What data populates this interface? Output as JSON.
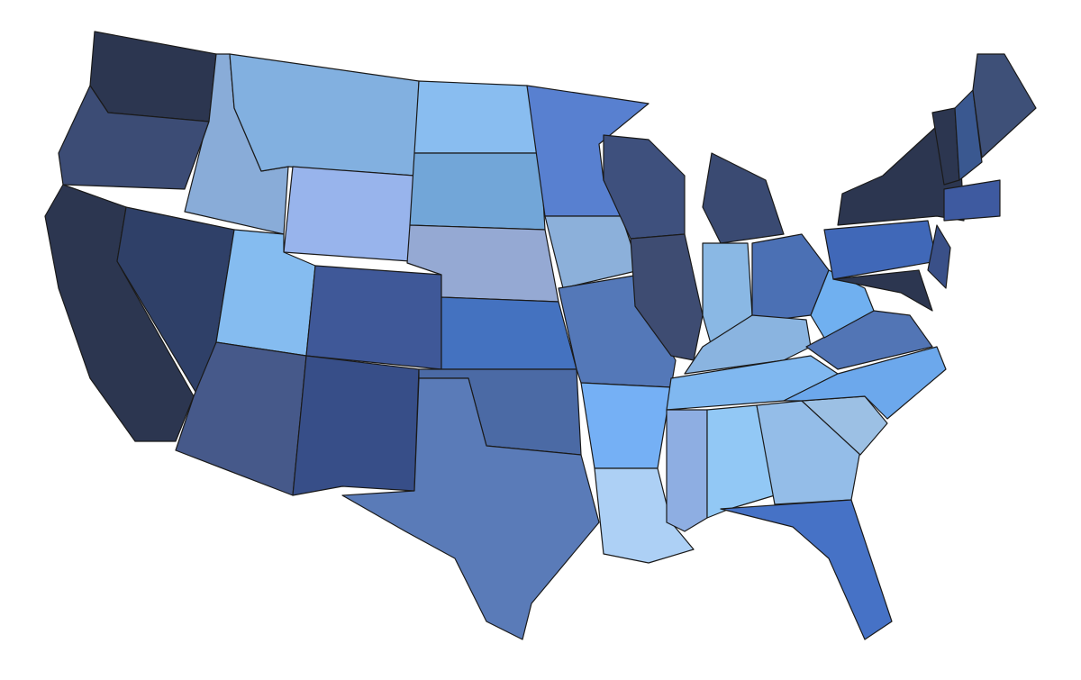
{
  "map": {
    "regions": [
      {
        "color": "#2c3650"
      },
      {
        "color": "#3c4c75"
      },
      {
        "color": "#2c3650"
      },
      {
        "color": "#2f4068"
      },
      {
        "color": "#89acd8"
      },
      {
        "color": "#82b0e0"
      },
      {
        "color": "#98b4ec"
      },
      {
        "color": "#85bcf0"
      },
      {
        "color": "#3f5898"
      },
      {
        "color": "#46598a"
      },
      {
        "color": "#374e88"
      },
      {
        "color": "#89bdf0"
      },
      {
        "color": "#72a6d8"
      },
      {
        "color": "#95a9d3"
      },
      {
        "color": "#4472c0"
      },
      {
        "color": "#4b6aa5"
      },
      {
        "color": "#5a7bb8"
      },
      {
        "color": "#5880d0"
      },
      {
        "color": "#8cb0da"
      },
      {
        "color": "#5478b8"
      },
      {
        "color": "#75b0f5"
      },
      {
        "color": "#add0f5"
      },
      {
        "color": "#3e507d"
      },
      {
        "color": "#3e4c72"
      },
      {
        "color": "#3a4a72"
      },
      {
        "color": "#8ab8e4"
      },
      {
        "color": "#4b70b4"
      },
      {
        "color": "#8ab4e0"
      },
      {
        "color": "#80b8f0"
      },
      {
        "color": "#8eaee2"
      },
      {
        "color": "#92c8f5"
      },
      {
        "color": "#94bde8"
      },
      {
        "color": "#4672c6"
      },
      {
        "color": "#9cc0e4"
      },
      {
        "color": "#6ca8ec"
      },
      {
        "color": "#5275b5"
      },
      {
        "color": "#70b0f0"
      },
      {
        "color": "#4068b8"
      },
      {
        "color": "#2c3650"
      },
      {
        "color": "#3a5088"
      },
      {
        "color": "#2c3650"
      },
      {
        "color": "#3e5aa0"
      },
      {
        "color": "#2c3650"
      },
      {
        "color": "#3a5890"
      },
      {
        "color": "#3e5078"
      }
    ]
  }
}
